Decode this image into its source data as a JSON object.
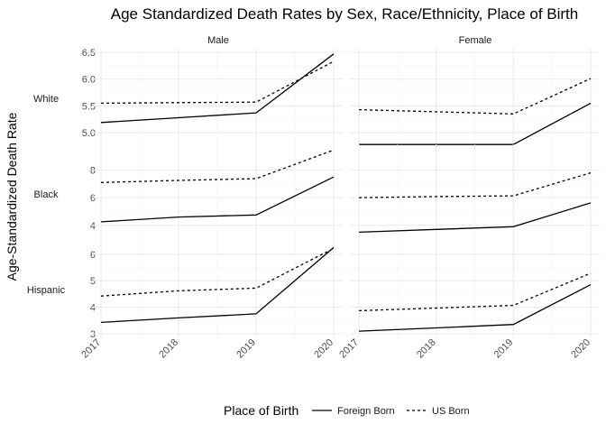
{
  "chart_data": {
    "type": "line",
    "title": "Age Standardized Death Rates by Sex, Race/Ethnicity, Place of Birth",
    "ylabel": "Age-Standardized Death Rate",
    "xlabel": "",
    "categories": [
      "2017",
      "2018",
      "2019",
      "2020"
    ],
    "columns": [
      "Male",
      "Female"
    ],
    "legend": {
      "title": "Place of Birth",
      "position": "bottom",
      "entries": [
        {
          "label": "Foreign Born",
          "dash": "solid"
        },
        {
          "label": "US Born",
          "dash": "dashed"
        }
      ]
    },
    "rows": [
      {
        "label": "White",
        "ylim": [
          4.85,
          6.5
        ],
        "yticks": [
          5.0,
          5.5,
          6.0,
          6.5
        ],
        "ytick_labels": [
          "5.0",
          "5.5",
          "6.0",
          "6.5"
        ],
        "panels": [
          {
            "column": "Male",
            "series": [
              {
                "name": "Foreign Born",
                "values": [
                  5.19,
                  5.28,
                  5.37,
                  6.47
                ]
              },
              {
                "name": "US Born",
                "values": [
                  5.55,
                  5.56,
                  5.57,
                  6.33
                ]
              }
            ]
          },
          {
            "column": "Female",
            "series": [
              {
                "name": "Foreign Born",
                "values": [
                  4.78,
                  4.78,
                  4.78,
                  5.55
                ]
              },
              {
                "name": "US Born",
                "values": [
                  5.43,
                  5.39,
                  5.35,
                  6.01
                ]
              }
            ]
          }
        ]
      },
      {
        "label": "Black",
        "ylim": [
          3.2,
          9.6
        ],
        "yticks": [
          4,
          6,
          8
        ],
        "ytick_labels": [
          "4",
          "6",
          "8"
        ],
        "panels": [
          {
            "column": "Male",
            "series": [
              {
                "name": "Foreign Born",
                "values": [
                  4.25,
                  4.6,
                  4.75,
                  7.5
                ]
              },
              {
                "name": "US Born",
                "values": [
                  7.1,
                  7.25,
                  7.38,
                  9.45
                ]
              }
            ]
          },
          {
            "column": "Female",
            "series": [
              {
                "name": "Foreign Born",
                "values": [
                  3.5,
                  3.7,
                  3.9,
                  5.62
                ]
              },
              {
                "name": "US Born",
                "values": [
                  6.0,
                  6.08,
                  6.13,
                  7.8
                ]
              }
            ]
          }
        ]
      },
      {
        "label": "Hispanic",
        "ylim": [
          3.0,
          6.4
        ],
        "yticks": [
          3,
          4,
          5,
          6
        ],
        "ytick_labels": [
          "3",
          "4",
          "5",
          "6"
        ],
        "panels": [
          {
            "column": "Male",
            "series": [
              {
                "name": "Foreign Born",
                "values": [
                  3.43,
                  3.6,
                  3.75,
                  6.25
                ]
              },
              {
                "name": "US Born",
                "values": [
                  4.42,
                  4.62,
                  4.72,
                  6.22
                ]
              }
            ]
          },
          {
            "column": "Female",
            "series": [
              {
                "name": "Foreign Born",
                "values": [
                  3.1,
                  3.22,
                  3.35,
                  4.85
                ]
              },
              {
                "name": "US Born",
                "values": [
                  3.87,
                  3.97,
                  4.07,
                  5.28
                ]
              }
            ]
          }
        ]
      }
    ]
  }
}
